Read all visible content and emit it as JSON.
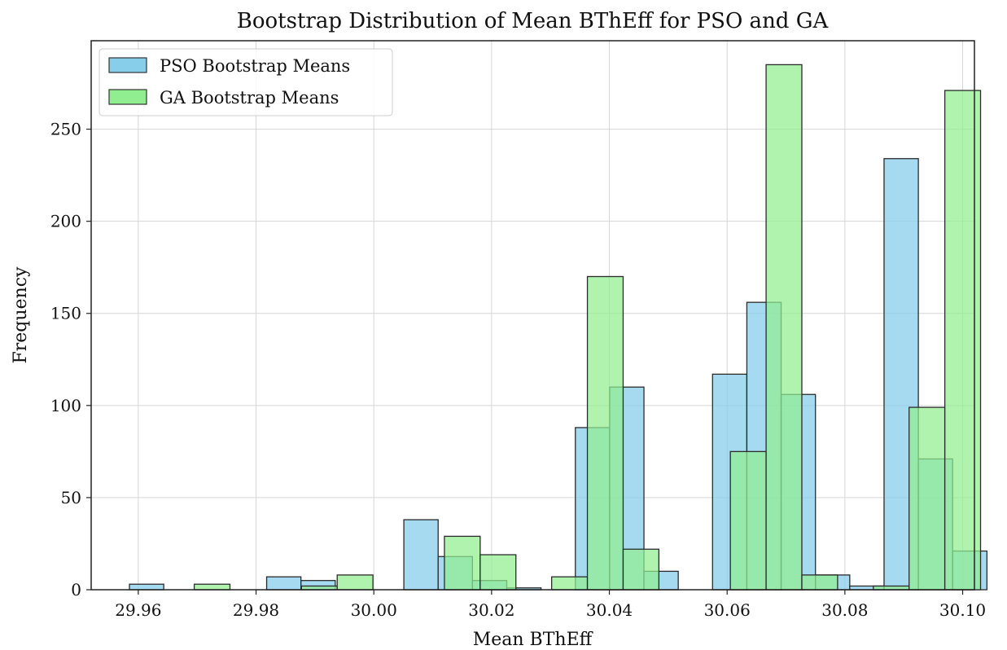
{
  "chart_data": {
    "type": "bar",
    "title": "Bootstrap Distribution of Mean BThEff for PSO and GA",
    "xlabel": "Mean BThEff",
    "ylabel": "Frequency",
    "xlim": [
      29.952,
      30.102
    ],
    "ylim": [
      0,
      298
    ],
    "xticks": [
      29.96,
      29.98,
      30.0,
      30.02,
      30.04,
      30.06,
      30.08,
      30.1
    ],
    "xtick_labels": [
      "29.96",
      "29.98",
      "30.00",
      "30.02",
      "30.04",
      "30.06",
      "30.08",
      "30.10"
    ],
    "yticks": [
      0,
      50,
      100,
      150,
      200,
      250
    ],
    "ytick_labels": [
      "0",
      "50",
      "100",
      "150",
      "200",
      "250"
    ],
    "grid": true,
    "legend_position": "top-left",
    "series": [
      {
        "name": "PSO Bootstrap Means",
        "color": "#87ceeb",
        "bin_start": 29.9585,
        "bin_width": 0.005825,
        "values": [
          3,
          0,
          0,
          0,
          7,
          5,
          0,
          0,
          38,
          18,
          5,
          1,
          0,
          88,
          110,
          10,
          0,
          117,
          156,
          106,
          8,
          2,
          234,
          71,
          21
        ]
      },
      {
        "name": "GA Bootstrap Means",
        "color": "#90ee90",
        "bin_start": 29.9695,
        "bin_width": 0.00607,
        "values": [
          3,
          0,
          0,
          2,
          8,
          0,
          0,
          29,
          19,
          0,
          7,
          170,
          22,
          0,
          0,
          75,
          285,
          8,
          0,
          2,
          99,
          271
        ]
      }
    ]
  }
}
